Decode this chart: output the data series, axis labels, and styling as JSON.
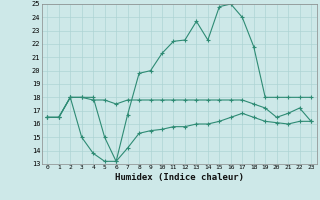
{
  "xlabel": "Humidex (Indice chaleur)",
  "x": [
    0,
    1,
    2,
    3,
    4,
    5,
    6,
    7,
    8,
    9,
    10,
    11,
    12,
    13,
    14,
    15,
    16,
    17,
    18,
    19,
    20,
    21,
    22,
    23
  ],
  "line1": [
    16.5,
    16.5,
    18.0,
    18.0,
    18.0,
    15.0,
    13.2,
    16.7,
    19.8,
    20.0,
    21.3,
    22.2,
    22.3,
    23.7,
    22.3,
    24.8,
    25.0,
    24.0,
    21.8,
    18.0,
    18.0,
    18.0,
    18.0,
    18.0
  ],
  "line2": [
    16.5,
    16.5,
    18.0,
    18.0,
    17.8,
    17.8,
    17.5,
    17.8,
    17.8,
    17.8,
    17.8,
    17.8,
    17.8,
    17.8,
    17.8,
    17.8,
    17.8,
    17.8,
    17.5,
    17.2,
    16.5,
    16.8,
    17.2,
    16.2
  ],
  "line3": [
    16.5,
    16.5,
    18.0,
    15.0,
    13.8,
    13.2,
    13.2,
    14.2,
    15.3,
    15.5,
    15.6,
    15.8,
    15.8,
    16.0,
    16.0,
    16.2,
    16.5,
    16.8,
    16.5,
    16.2,
    16.1,
    16.0,
    16.2,
    16.2
  ],
  "line_color": "#2e8b74",
  "bg_color": "#cde8e8",
  "grid_color": "#aed4d4",
  "ylim": [
    13,
    25
  ],
  "xlim": [
    -0.5,
    23.5
  ],
  "yticks": [
    13,
    14,
    15,
    16,
    17,
    18,
    19,
    20,
    21,
    22,
    23,
    24,
    25
  ],
  "xticks": [
    0,
    1,
    2,
    3,
    4,
    5,
    6,
    7,
    8,
    9,
    10,
    11,
    12,
    13,
    14,
    15,
    16,
    17,
    18,
    19,
    20,
    21,
    22,
    23
  ]
}
